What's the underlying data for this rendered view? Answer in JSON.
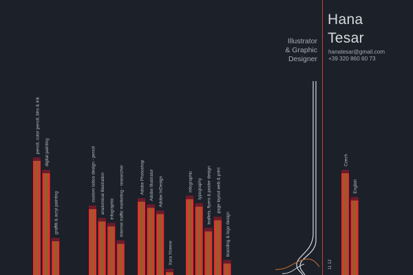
{
  "profile": {
    "first_name": "Hana",
    "last_name": "Tesar",
    "role_lines": [
      "Illustrator",
      "& Graphic",
      "Designer"
    ],
    "email": "hanatesar@gmail.com",
    "phone": "+39 320 860 60 73"
  },
  "colors": {
    "background": "#1b2029",
    "bar_top": "#f02a2f",
    "bar_inner": "#9c5a2b",
    "bar_cap": "#6e1a2a",
    "accent_line": "#d2402f",
    "text": "#b9bec6",
    "curve_light": "#d9dbe0",
    "curve_orange": "#b5662c"
  },
  "chart_data": {
    "type": "bar",
    "title": "",
    "groups": [
      {
        "categories": [
          "pencil, color pencil, biro & ink",
          "digital painting",
          "graffiti & acryl painting"
        ],
        "values": [
          95,
          85,
          30
        ]
      },
      {
        "categories": [
          "custom tattoo design - pencil",
          "anatomical illustration",
          "infographic",
          "internet traffic marketing - researcher"
        ],
        "values": [
          56,
          46,
          42,
          28
        ]
      },
      {
        "categories": [
          "Adobe Photoshop",
          "Adobe Illustrator",
          "Adobe InDesign",
          "Xara Xtreme"
        ],
        "values": [
          62,
          57,
          52,
          5
        ]
      },
      {
        "categories": [
          "infographic",
          "typography",
          "leaflets, flyers & poster design",
          "page layout web & print",
          "branding & logo design"
        ],
        "values": [
          64,
          58,
          38,
          47,
          12
        ]
      },
      {
        "categories": [
          "Czech",
          "English"
        ],
        "values": [
          85,
          63
        ]
      }
    ],
    "side_labels": [
      "11 12"
    ]
  }
}
